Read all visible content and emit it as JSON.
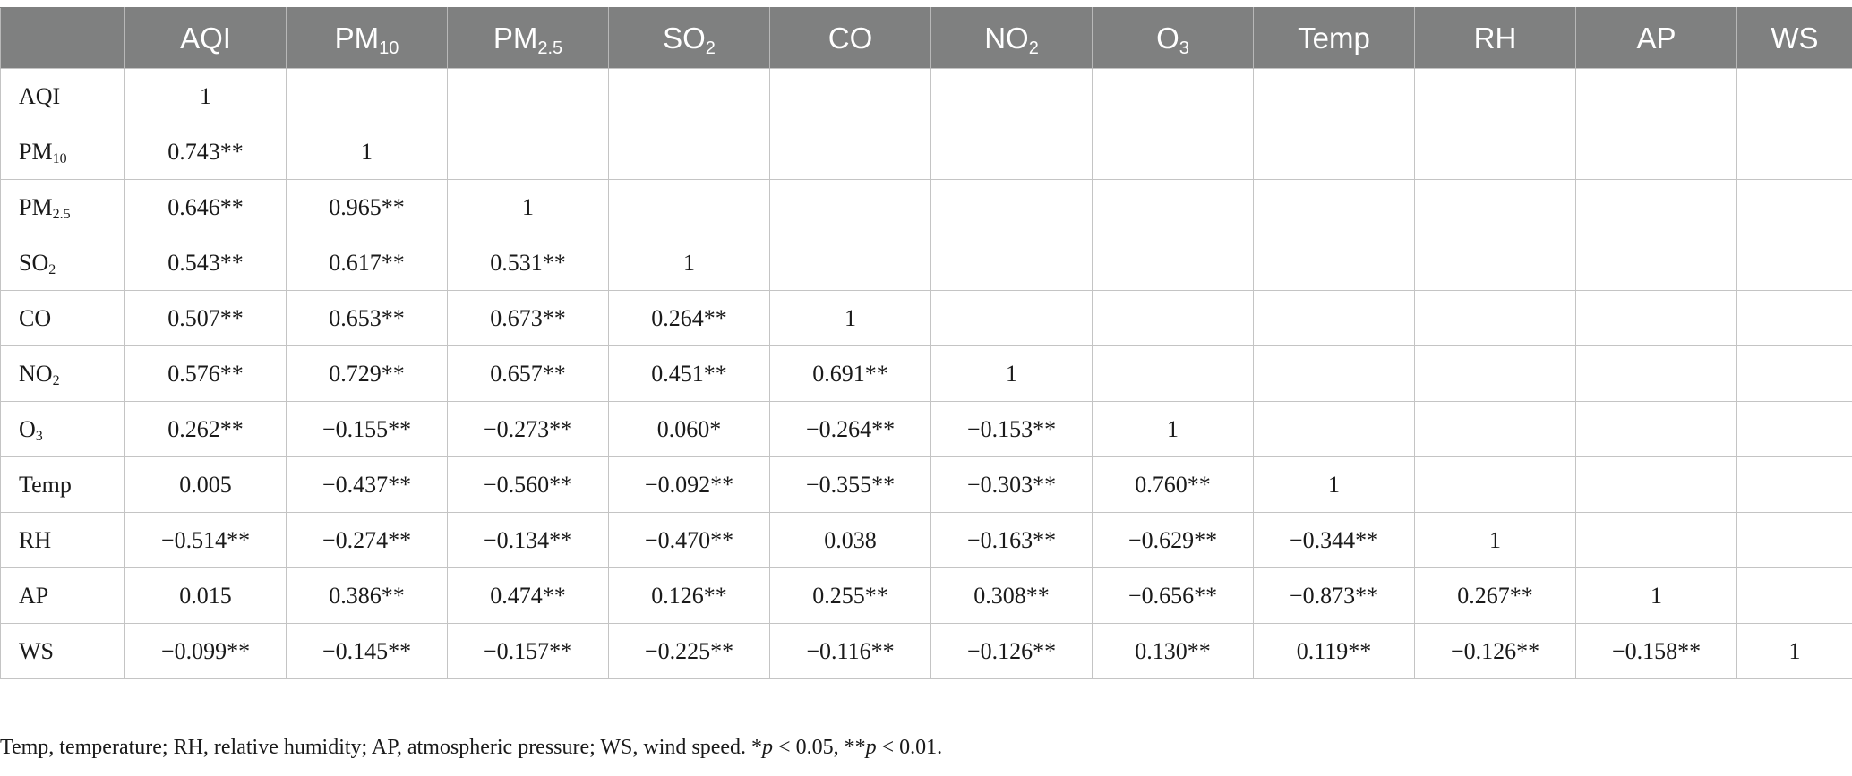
{
  "table": {
    "columns": [
      {
        "base": "",
        "sub": ""
      },
      {
        "base": "AQI",
        "sub": ""
      },
      {
        "base": "PM",
        "sub": "10"
      },
      {
        "base": "PM",
        "sub": "2.5"
      },
      {
        "base": "SO",
        "sub": "2"
      },
      {
        "base": "CO",
        "sub": ""
      },
      {
        "base": "NO",
        "sub": "2"
      },
      {
        "base": "O",
        "sub": "3"
      },
      {
        "base": "Temp",
        "sub": ""
      },
      {
        "base": "RH",
        "sub": ""
      },
      {
        "base": "AP",
        "sub": ""
      },
      {
        "base": "WS",
        "sub": ""
      }
    ],
    "rows": [
      {
        "label": {
          "base": "AQI",
          "sub": ""
        },
        "cells": [
          "1",
          "",
          "",
          "",
          "",
          "",
          "",
          "",
          "",
          "",
          ""
        ]
      },
      {
        "label": {
          "base": "PM",
          "sub": "10"
        },
        "cells": [
          "0.743**",
          "1",
          "",
          "",
          "",
          "",
          "",
          "",
          "",
          "",
          ""
        ]
      },
      {
        "label": {
          "base": "PM",
          "sub": "2.5"
        },
        "cells": [
          "0.646**",
          "0.965**",
          "1",
          "",
          "",
          "",
          "",
          "",
          "",
          "",
          ""
        ]
      },
      {
        "label": {
          "base": "SO",
          "sub": "2"
        },
        "cells": [
          "0.543**",
          "0.617**",
          "0.531**",
          "1",
          "",
          "",
          "",
          "",
          "",
          "",
          ""
        ]
      },
      {
        "label": {
          "base": "CO",
          "sub": ""
        },
        "cells": [
          "0.507**",
          "0.653**",
          "0.673**",
          "0.264**",
          "1",
          "",
          "",
          "",
          "",
          "",
          ""
        ]
      },
      {
        "label": {
          "base": "NO",
          "sub": "2"
        },
        "cells": [
          "0.576**",
          "0.729**",
          "0.657**",
          "0.451**",
          "0.691**",
          "1",
          "",
          "",
          "",
          "",
          ""
        ]
      },
      {
        "label": {
          "base": "O",
          "sub": "3"
        },
        "cells": [
          "0.262**",
          "−0.155**",
          "−0.273**",
          "0.060*",
          "−0.264**",
          "−0.153**",
          "1",
          "",
          "",
          "",
          ""
        ]
      },
      {
        "label": {
          "base": "Temp",
          "sub": ""
        },
        "cells": [
          "0.005",
          "−0.437**",
          "−0.560**",
          "−0.092**",
          "−0.355**",
          "−0.303**",
          "0.760**",
          "1",
          "",
          "",
          ""
        ]
      },
      {
        "label": {
          "base": "RH",
          "sub": ""
        },
        "cells": [
          "−0.514**",
          "−0.274**",
          "−0.134**",
          "−0.470**",
          "0.038",
          "−0.163**",
          "−0.629**",
          "−0.344**",
          "1",
          "",
          ""
        ]
      },
      {
        "label": {
          "base": "AP",
          "sub": ""
        },
        "cells": [
          "0.015",
          "0.386**",
          "0.474**",
          "0.126**",
          "0.255**",
          "0.308**",
          "−0.656**",
          "−0.873**",
          "0.267**",
          "1",
          ""
        ]
      },
      {
        "label": {
          "base": "WS",
          "sub": ""
        },
        "cells": [
          "−0.099**",
          "−0.145**",
          "−0.157**",
          "−0.225**",
          "−0.116**",
          "−0.126**",
          "0.130**",
          "0.119**",
          "−0.126**",
          "−0.158**",
          "1"
        ]
      }
    ]
  },
  "footnote": {
    "definitions": "Temp, temperature; RH, relative humidity; AP, atmospheric pressure; WS, wind speed. *",
    "p1_symbol": "p",
    "p1_rest": " < 0.05, **",
    "p2_symbol": "p",
    "p2_rest": " < 0.01."
  },
  "colors": {
    "header_bg": "#7f8080",
    "header_text": "#ffffff",
    "grid_line": "#c4c4c4",
    "body_text": "#1a1a1a"
  }
}
